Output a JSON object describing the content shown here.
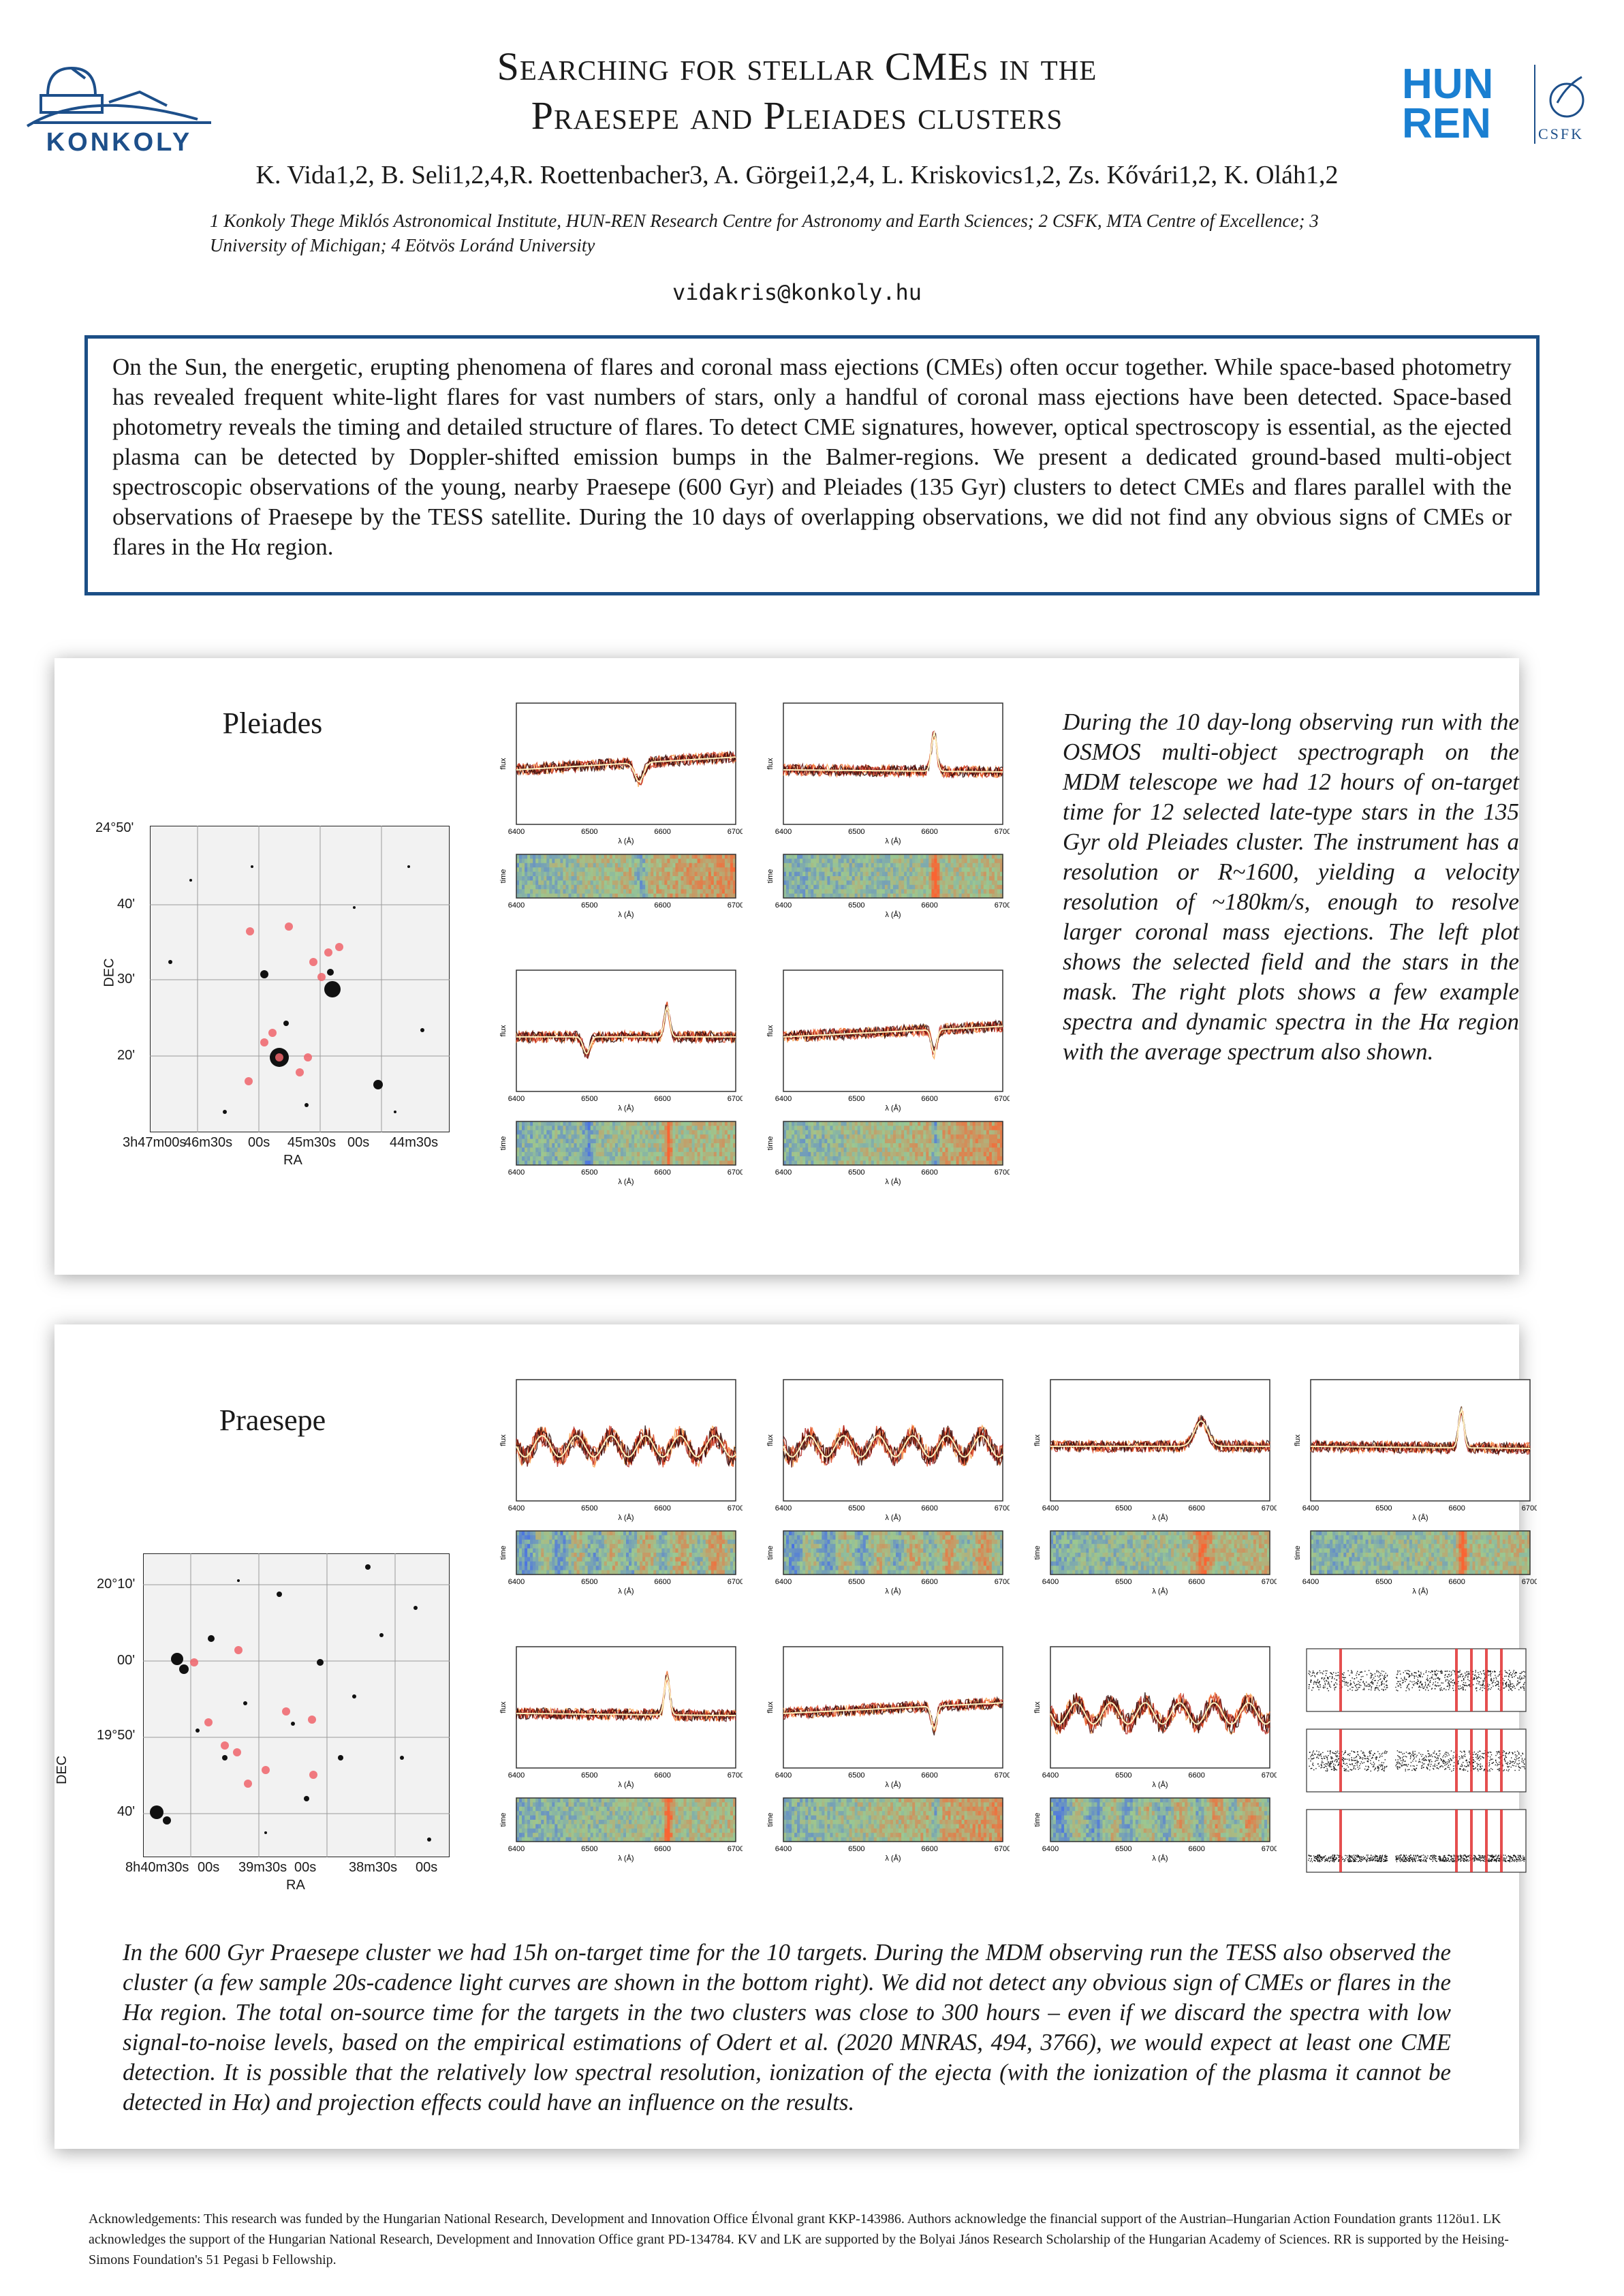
{
  "header": {
    "title_line1": "Searching for stellar CMEs in the",
    "title_line2": "Praesepe and Pleiades clusters",
    "authors": "K. Vida1,2, B. Seli1,2,4,R. Roettenbacher3, A. Görgei1,2,4, L. Kriskovics1,2, Zs. Kővári1,2, K. Oláh1,2",
    "affiliations": "1 Konkoly Thege Miklós Astronomical Institute, HUN-REN Research Centre for Astronomy and Earth Sciences; 2 CSFK, MTA Centre of Excellence; 3 University of Michigan; 4 Eötvös Loránd University",
    "email": "vidakris@konkoly.hu"
  },
  "logos": {
    "konkoly": "KONKOLY",
    "hunren_line1": "HUN",
    "hunren_line2": "REN",
    "csfk": "CSFK"
  },
  "abstract": "On the Sun, the energetic, erupting phenomena of flares and coronal mass ejections (CMEs) often occur together. While space-based photometry has revealed frequent white-light flares for vast numbers of stars, only a handful of coronal mass ejections have been detected. Space-based photometry reveals the timing and detailed structure of flares. To detect CME signatures, however, optical spectroscopy is essential, as the ejected plasma can be detected by Doppler-shifted emission bumps in the Balmer-regions. We present a dedicated ground-based multi-object spectroscopic observations of the young, nearby Praesepe (600 Gyr) and Pleiades (135 Gyr) clusters to detect CMEs and flares parallel with the observations of Praesepe by the TESS satellite. During the 10 days of overlapping observations, we did not find any obvious signs of CMEs or flares in the Hα region.",
  "pleiades": {
    "title": "Pleiades",
    "text": "During the 10 day-long observing run with the OSMOS multi-object spectrograph on the MDM telescope we had 12 hours of on-target time for 12 selected late-type stars in the 135 Gyr old Pleiades cluster. The instrument has a resolution or R~1600, yielding a velocity resolution of ~180km/s, enough to resolve larger coronal mass ejections. The left plot shows the selected field and the stars in the mask. The right plots shows a few example spectra and dynamic spectra in the Hα region with the average spectrum also shown.",
    "map": {
      "ylabel": "DEC",
      "xlabel": "RA",
      "yticks": [
        "24°50'",
        "40'",
        "30'",
        "20'"
      ],
      "xticks": [
        "3h47m00s",
        "46m30s",
        "00s",
        "45m30s",
        "00s",
        "44m30s"
      ]
    }
  },
  "praesepe": {
    "title": "Praesepe",
    "text": "In the 600 Gyr Praesepe cluster we had 15h on-target time for the 10 targets. During the MDM observing run the TESS also observed the cluster (a few sample 20s-cadence light curves are shown in the bottom right). We did not detect any obvious sign of CMEs or flares in the Hα region. The total on-source time for the targets in the two clusters was close to 300 hours – even if we discard the spectra with low signal-to-noise levels, based on the empirical estimations of Odert et al. (2020 MNRAS, 494, 3766), we would expect at least one CME detection. It is possible that the relatively low spectral resolution, ionization of the ejecta (with the ionization of the plasma it cannot be detected in Hα) and projection effects could have an influence on the results.",
    "map": {
      "ylabel": "DEC",
      "xlabel": "RA",
      "yticks": [
        "20°10'",
        "00'",
        "19°50'",
        "40'"
      ],
      "xticks": [
        "8h40m30s",
        "00s",
        "39m30s",
        "00s",
        "38m30s",
        "00s"
      ]
    }
  },
  "spectra_axes": {
    "x_ticks": [
      "6400",
      "6500",
      "6600",
      "6700"
    ],
    "x_label": "λ (Å)",
    "flux_label": "flux",
    "time_label": "time"
  },
  "acknowledgements": "Acknowledgements: This research was funded by the Hungarian National Research, Development and Innovation Office Élvonal grant KKP-143986. Authors acknowledge the financial support of the Austrian–Hungarian Action Foundation grants 112öu1. LK acknowledges the support of the Hungarian National Research, Development and Innovation Office grant PD-134784. KV and LK are supported by the Bolyai János Research Scholarship of the Hungarian Academy of Sciences. RR is supported by the Heising-Simons Foundation's 51 Pegasi b Fellowship."
}
